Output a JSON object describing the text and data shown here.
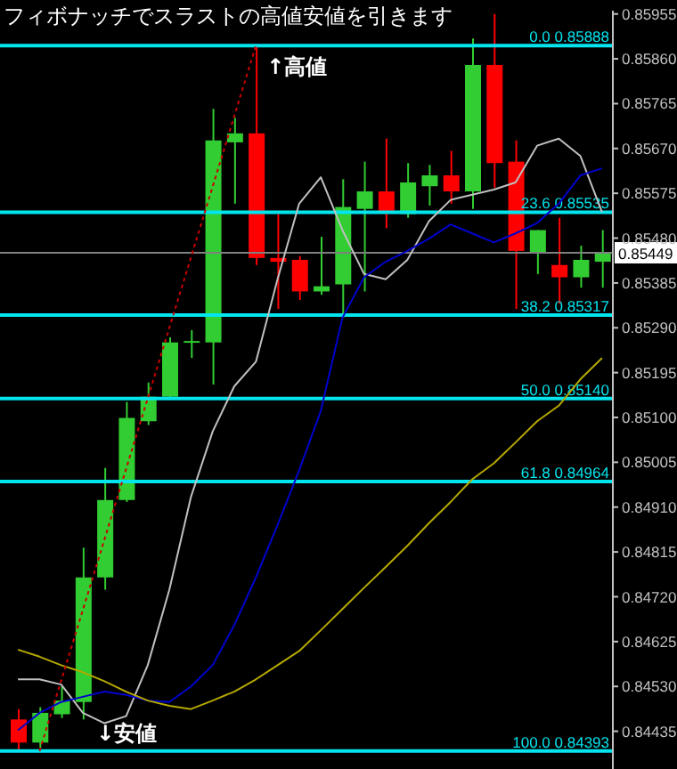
{
  "chart_data": {
    "type": "candlestick",
    "title": "フィボナッチでスラストの高値安値を引きます",
    "categories": [
      null,
      null,
      null,
      null,
      null,
      null,
      null,
      null,
      null,
      null,
      null,
      null,
      null,
      null,
      null,
      null,
      null,
      null,
      null,
      null,
      null,
      null,
      null,
      null,
      null,
      null,
      null,
      null
    ],
    "ohlc": [
      [
        0.8446,
        0.84482,
        0.84393,
        0.84411
      ],
      [
        0.84411,
        0.84486,
        0.844,
        0.84474
      ],
      [
        0.84471,
        0.8453,
        0.84463,
        0.845
      ],
      [
        0.84497,
        0.84824,
        0.8446,
        0.84761
      ],
      [
        0.84761,
        0.84993,
        0.84735,
        0.84925
      ],
      [
        0.84925,
        0.85133,
        0.84921,
        0.85099
      ],
      [
        0.85092,
        0.85174,
        0.85084,
        0.85144
      ],
      [
        0.85144,
        0.8527,
        0.85137,
        0.85259
      ],
      [
        0.85259,
        0.85285,
        0.85226,
        0.85262
      ],
      [
        0.85259,
        0.85754,
        0.8517,
        0.85687
      ],
      [
        0.85683,
        0.85735,
        0.85553,
        0.85702
      ],
      [
        0.85702,
        0.85888,
        0.85423,
        0.85438
      ],
      [
        0.85438,
        0.85531,
        0.8533,
        0.8543
      ],
      [
        0.85434,
        0.85442,
        0.85349,
        0.85367
      ],
      [
        0.85367,
        0.85483,
        0.8536,
        0.85378
      ],
      [
        0.85382,
        0.85605,
        0.85311,
        0.85546
      ],
      [
        0.85542,
        0.85642,
        0.85367,
        0.85579
      ],
      [
        0.85579,
        0.85691,
        0.85501,
        0.85535
      ],
      [
        0.85531,
        0.85639,
        0.85523,
        0.85598
      ],
      [
        0.8559,
        0.85635,
        0.85549,
        0.85613
      ],
      [
        0.85613,
        0.85665,
        0.85553,
        0.85579
      ],
      [
        0.85579,
        0.85903,
        0.85542,
        0.85847
      ],
      [
        0.85847,
        0.85955,
        0.85587,
        0.85639
      ],
      [
        0.85642,
        0.85687,
        0.8533,
        0.85453
      ],
      [
        0.85449,
        0.85497,
        0.85404,
        0.85497
      ],
      [
        0.85423,
        0.85523,
        0.85341,
        0.85397
      ],
      [
        0.85397,
        0.85464,
        0.85375,
        0.85434
      ],
      [
        0.8543,
        0.85497,
        0.85375,
        0.85449
      ]
    ],
    "colors": [
      "#ff0000",
      "#32cd32",
      "#32cd32",
      "#32cd32",
      "#32cd32",
      "#32cd32",
      "#32cd32",
      "#32cd32",
      "#32cd32",
      "#32cd32",
      "#32cd32",
      "#ff0000",
      "#ff0000",
      "#ff0000",
      "#32cd32",
      "#32cd32",
      "#32cd32",
      "#ff0000",
      "#32cd32",
      "#32cd32",
      "#ff0000",
      "#32cd32",
      "#ff0000",
      "#ff0000",
      "#32cd32",
      "#ff0000",
      "#32cd32",
      "#32cd32"
    ],
    "series": [
      {
        "type": "line",
        "color": "#c0c0c0",
        "values": [
          0.84545,
          0.84545,
          0.84534,
          0.84474,
          0.84452,
          0.84467,
          0.84575,
          0.84735,
          0.84932,
          0.8507,
          0.85166,
          0.85218,
          0.85393,
          0.85553,
          0.85609,
          0.85497,
          0.85404,
          0.85393,
          0.85434,
          0.85516,
          0.85561,
          0.85572,
          0.85583,
          0.85598,
          0.85676,
          0.85691,
          0.85654,
          0.85535
        ]
      },
      {
        "type": "line",
        "color": "#0000cd",
        "values": [
          0.84437,
          0.84474,
          0.84497,
          0.84508,
          0.84519,
          0.84512,
          0.845,
          0.84497,
          0.8453,
          0.84575,
          0.8466,
          0.84761,
          0.84872,
          0.84988,
          0.85114,
          0.85311,
          0.85397,
          0.8543,
          0.85453,
          0.85479,
          0.85509,
          0.8549,
          0.85471,
          0.8549,
          0.85512,
          0.85553,
          0.85613,
          0.85628
        ]
      },
      {
        "type": "line",
        "color": "#b5a800",
        "values": [
          0.84608,
          0.84593,
          0.84575,
          0.8456,
          0.84541,
          0.84519,
          0.845,
          0.84489,
          0.84482,
          0.845,
          0.84519,
          0.84545,
          0.84575,
          0.84605,
          0.84649,
          0.84694,
          0.84739,
          0.84783,
          0.84828,
          0.84876,
          0.84921,
          0.84969,
          0.85003,
          0.85047,
          0.85092,
          0.85125,
          0.85181,
          0.85226
        ]
      },
      {
        "type": "line",
        "color": "#cc0000",
        "line_style": "dotted",
        "values": [
          null,
          0.84393,
          null,
          null,
          null,
          null,
          null,
          null,
          null,
          null,
          null,
          0.85888,
          null,
          null,
          null,
          null,
          null,
          null,
          null,
          null,
          null,
          null,
          null,
          null,
          null,
          null,
          null,
          null
        ]
      }
    ],
    "ylim": [
      0.84355,
      0.85962
    ],
    "yticks": [
      0.85955,
      {
        "value": 0.8586,
        "label": "0.85860"
      },
      0.85765,
      {
        "value": 0.8567,
        "label": "0.85670"
      },
      0.85575,
      {
        "value": 0.8548,
        "label": "0.85480"
      },
      0.85385,
      {
        "value": 0.8529,
        "label": "0.85290"
      },
      0.85195,
      {
        "value": 0.851,
        "label": "0.85100"
      },
      0.85005,
      {
        "value": 0.8491,
        "label": "0.84910"
      },
      0.84815,
      {
        "value": 0.8472,
        "label": "0.84720"
      },
      0.84625,
      {
        "value": 0.8453,
        "label": "0.84530"
      },
      0.84435
    ],
    "ref_lines": [
      {
        "axis": "y",
        "value": 0.85888,
        "label": "0.0 0.85888",
        "color": "#00e5ee"
      },
      {
        "axis": "y",
        "value": 0.85535,
        "label": "23.6 0.85535",
        "color": "#00e5ee"
      },
      {
        "axis": "y",
        "value": 0.85317,
        "label": "38.2 0.85317",
        "color": "#00e5ee"
      },
      {
        "axis": "y",
        "value": 0.8514,
        "label": "50.0 0.85140",
        "color": "#00e5ee"
      },
      {
        "axis": "y",
        "value": 0.84964,
        "label": "61.8 0.84964",
        "color": "#00e5ee"
      },
      {
        "axis": "y",
        "value": 0.84393,
        "label": "100.0 0.84393",
        "color": "#00e5ee"
      },
      {
        "axis": "y",
        "value": 0.85449,
        "label": "0.85449",
        "color": "#808080"
      }
    ],
    "annotations": [
      {
        "text": "↑高値",
        "y": 0.85888
      },
      {
        "text": "↓安値",
        "y": 0.84393
      }
    ],
    "tick_labels": "y",
    "grid": false,
    "legend": false
  }
}
